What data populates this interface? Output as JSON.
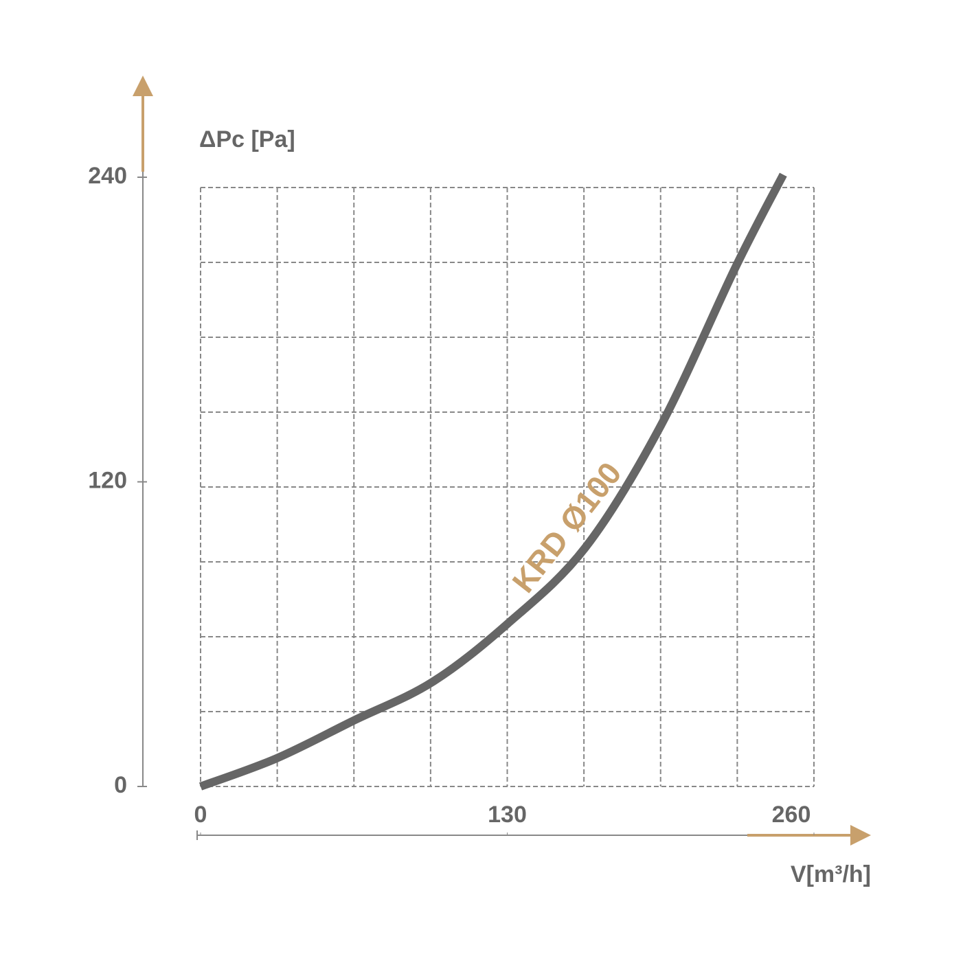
{
  "chart_data": {
    "type": "line",
    "y_label": "ΔPc [Pa]",
    "x_label": "V[m³/h]",
    "annotation": "KRD Ø100",
    "xlim": [
      0,
      260
    ],
    "xticks": [
      0,
      130,
      260
    ],
    "ylim": [
      0,
      240
    ],
    "yticks": [
      0,
      120,
      240
    ],
    "grid": true,
    "accent_color": "#c8a06c",
    "x": [
      0,
      32,
      65,
      98,
      130,
      163,
      195,
      227,
      247
    ],
    "series": [
      {
        "color": "#666666",
        "values": [
          0,
          11,
          26,
          41,
          64,
          94,
          142,
          205,
          241
        ]
      }
    ]
  }
}
